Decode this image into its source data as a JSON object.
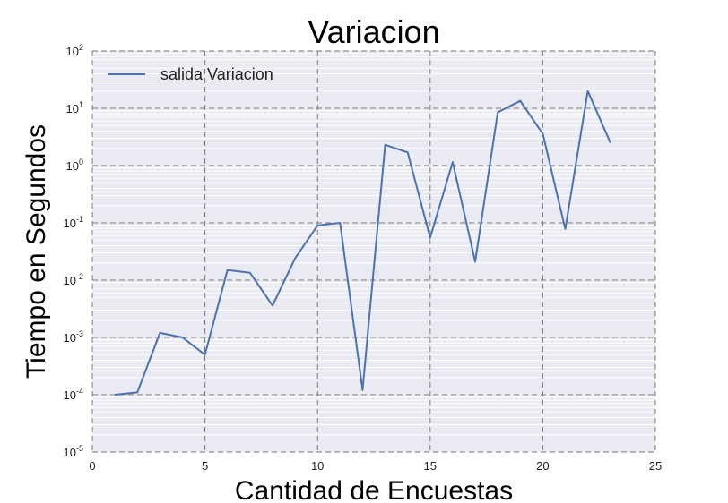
{
  "chart_data": {
    "type": "line",
    "title": "Variacion",
    "xlabel": "Cantidad de Encuestas",
    "ylabel": "Tiempo en Segundos",
    "xlim": [
      0,
      25
    ],
    "ylim": [
      1e-05,
      100
    ],
    "yscale": "log",
    "grid": true,
    "legend_position": "top-left",
    "x_ticks": [
      "0",
      "5",
      "10",
      "15",
      "20",
      "25"
    ],
    "y_ticks": [
      {
        "base": "10",
        "exp": "-5"
      },
      {
        "base": "10",
        "exp": "-4"
      },
      {
        "base": "10",
        "exp": "-3"
      },
      {
        "base": "10",
        "exp": "-2"
      },
      {
        "base": "10",
        "exp": "-1"
      },
      {
        "base": "10",
        "exp": "0"
      },
      {
        "base": "10",
        "exp": "1"
      },
      {
        "base": "10",
        "exp": "2"
      }
    ],
    "series": [
      {
        "name": "salida Variacion",
        "color": "#4c72b0",
        "x": [
          1,
          2,
          3,
          4,
          5,
          6,
          7,
          8,
          9,
          10,
          11,
          12,
          13,
          14,
          15,
          16,
          17,
          18,
          19,
          20,
          21,
          22,
          23
        ],
        "values": [
          0.0001,
          0.00011,
          0.0012,
          0.001,
          0.0005,
          0.015,
          0.0135,
          0.0036,
          0.024,
          0.09,
          0.1,
          0.00012,
          2.3,
          1.7,
          0.055,
          1.15,
          0.021,
          8.5,
          13.5,
          3.6,
          0.078,
          20,
          2.5
        ]
      }
    ]
  }
}
